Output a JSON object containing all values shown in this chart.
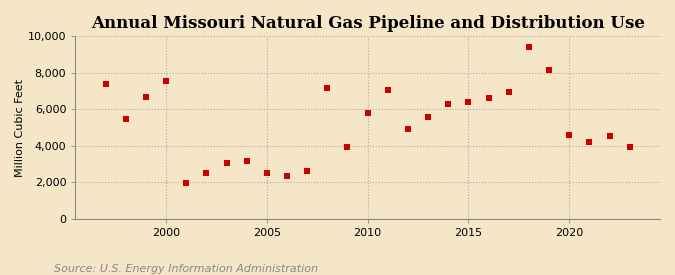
{
  "title": "Annual Missouri Natural Gas Pipeline and Distribution Use",
  "ylabel": "Million Cubic Feet",
  "source": "Source: U.S. Energy Information Administration",
  "background_color": "#f5e6c8",
  "plot_background_color": "#f5e6c8",
  "grid_color": "#aaaaaa",
  "marker_color": "#cc0000",
  "years": [
    1997,
    1998,
    1999,
    2000,
    2001,
    2002,
    2003,
    2004,
    2005,
    2006,
    2007,
    2008,
    2009,
    2010,
    2011,
    2012,
    2013,
    2014,
    2015,
    2016,
    2017,
    2018,
    2019,
    2020,
    2021,
    2022,
    2023
  ],
  "values": [
    7400,
    5500,
    6700,
    7550,
    1950,
    2500,
    3050,
    3200,
    2500,
    2350,
    2600,
    7150,
    3950,
    5800,
    7050,
    4950,
    5600,
    6300,
    6400,
    6600,
    6950,
    9400,
    8150,
    4600,
    4200,
    4550,
    3950
  ],
  "ylim": [
    0,
    10000
  ],
  "yticks": [
    0,
    2000,
    4000,
    6000,
    8000,
    10000
  ],
  "ytick_labels": [
    "0",
    "2,000",
    "4,000",
    "6,000",
    "8,000",
    "10,000"
  ],
  "xlim": [
    1995.5,
    2024.5
  ],
  "xticks": [
    2000,
    2005,
    2010,
    2015,
    2020
  ],
  "title_fontsize": 12,
  "axis_fontsize": 8,
  "source_fontsize": 8
}
